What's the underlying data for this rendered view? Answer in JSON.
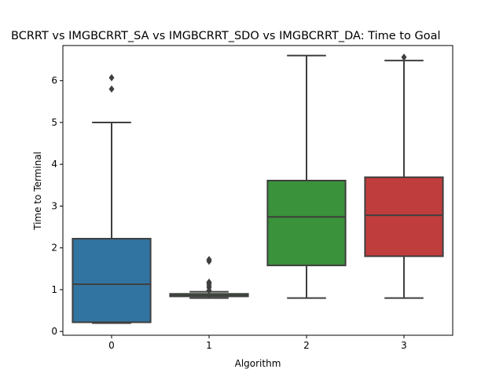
{
  "chart_data": {
    "type": "box",
    "title": "BCRRT vs IMGBCRRT_SA vs IMGBCRRT_SDO vs IMGBCRRT_DA: Time to Goal",
    "xlabel": "Algorithm",
    "ylabel": "Time to Terminal",
    "categories": [
      "0",
      "1",
      "2",
      "3"
    ],
    "ylim": [
      -0.09,
      6.84
    ],
    "yticks": [
      0,
      1,
      2,
      3,
      4,
      5,
      6
    ],
    "ytick_labels": [
      "0",
      "1",
      "2",
      "3",
      "4",
      "5",
      "6"
    ],
    "grid": false,
    "legend": "none",
    "series": [
      {
        "color": "#3274a1",
        "whisker_low": 0.2,
        "q1": 0.22,
        "median": 1.13,
        "q3": 2.22,
        "whisker_high": 5.0,
        "outliers": [
          5.8,
          6.07
        ]
      },
      {
        "color": "#3a923a",
        "whisker_low": 0.8,
        "q1": 0.84,
        "median": 0.86,
        "q3": 0.9,
        "whisker_high": 0.95,
        "outliers": [
          0.98,
          1.05,
          1.1,
          1.15,
          1.18,
          1.68,
          1.72
        ]
      },
      {
        "color": "#3a923a",
        "whisker_low": 0.8,
        "q1": 1.58,
        "median": 2.74,
        "q3": 3.61,
        "whisker_high": 6.6,
        "outliers": []
      },
      {
        "color": "#c03d3e",
        "whisker_low": 0.8,
        "q1": 1.8,
        "median": 2.78,
        "q3": 3.69,
        "whisker_high": 6.48,
        "outliers": [
          6.56
        ]
      }
    ]
  }
}
